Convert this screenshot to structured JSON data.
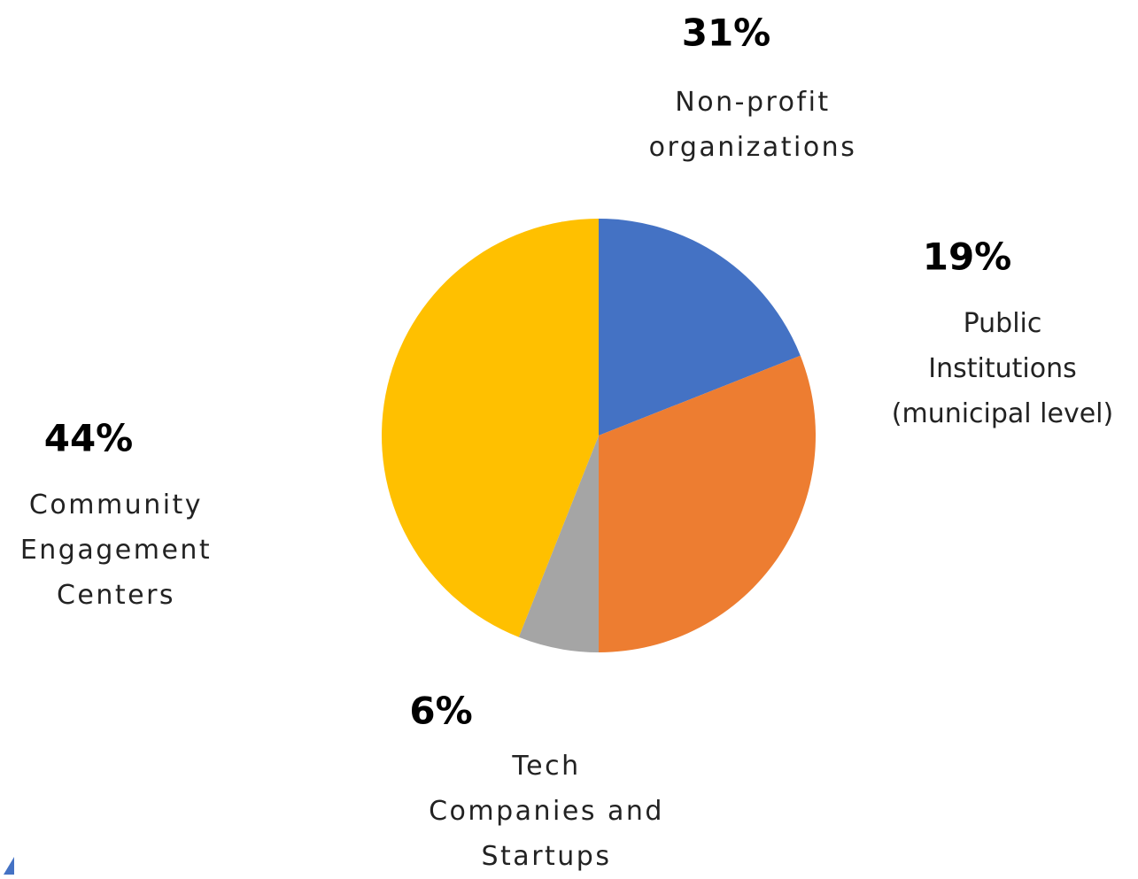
{
  "chart_data": {
    "type": "pie",
    "categories": [
      "Public\nInstitutions\n(municipal level)",
      "Non-profit\norganizations",
      "Tech\nCompanies and\nStartups",
      "Community\nEngagement\nCenters"
    ],
    "values": [
      19,
      31,
      6,
      44
    ],
    "value_labels": [
      "19%",
      "31%",
      "6%",
      "44%"
    ],
    "colors": [
      "#4472c4",
      "#ed7d31",
      "#a5a5a5",
      "#ffc000"
    ]
  }
}
